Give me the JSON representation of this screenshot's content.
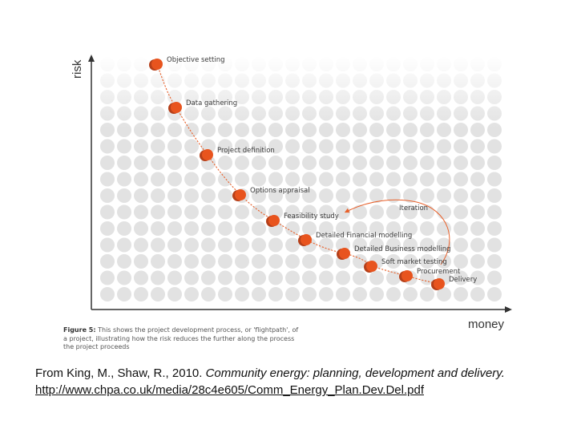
{
  "diagram": {
    "y_axis_label": "risk",
    "x_axis_label": "money",
    "iteration_label": "Iteration",
    "stages": [
      "Objective setting",
      "Data gathering",
      "Project definition",
      "Options appraisal",
      "Feasibility study",
      "Detailed Financial modelling",
      "Detailed Business modelling",
      "Soft market testing",
      "Procurement",
      "Delivery"
    ],
    "colors": {
      "stage_dot": "#e8541e",
      "curve": "#e8602a",
      "dot_grid": "#e2e2e2",
      "axis": "#333333"
    }
  },
  "caption": {
    "lead": "Figure 5:",
    "line1": " This shows the project development process, or 'flightpath', of",
    "line2": "a project, illustrating how the risk reduces the further along the process",
    "line3": "the project proceeds"
  },
  "citation": {
    "prefix": "From King, M., Shaw, R., 2010. ",
    "title": "Community energy: planning, development and delivery.",
    "url": "http://www.chpa.co.uk/media/28c4e605/Comm_Energy_Plan.Dev.Del.pdf"
  }
}
